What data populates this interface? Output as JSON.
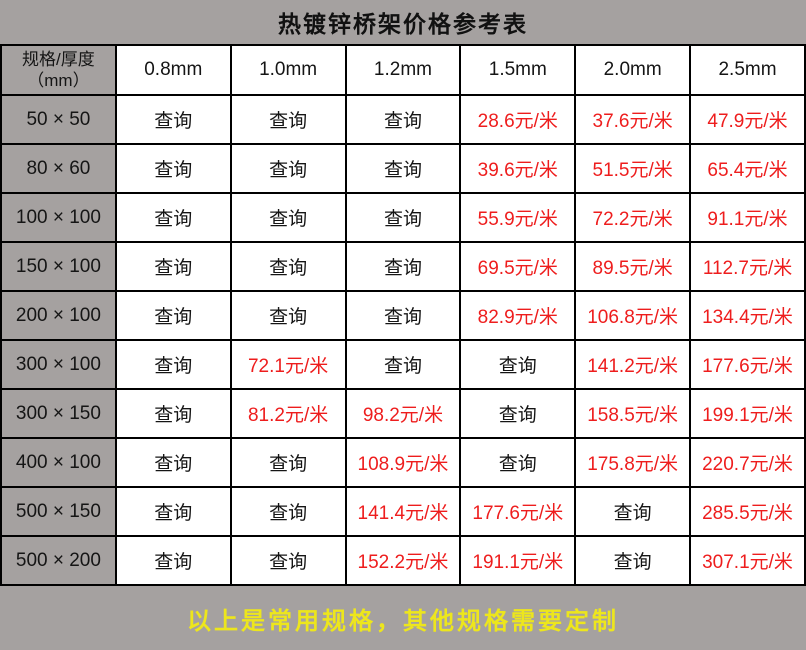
{
  "colors": {
    "background_gray": "#a5a1a0",
    "cell_white": "#ffffff",
    "grid_border_black": "#000000",
    "price_red": "#ee1d1d",
    "text_black": "#151515",
    "footer_yellow": "#ede61c"
  },
  "table": {
    "title": "热镀锌桥架价格参考表",
    "corner_line1": "规格/厚度",
    "corner_line2": "（mm）",
    "footer_note": "以上是常用规格，其他规格需要定制"
  },
  "chart_data": {
    "type": "table",
    "title": "热镀锌桥架价格参考表",
    "row_header_label": "规格/厚度（mm）",
    "columns": [
      "0.8mm",
      "1.0mm",
      "1.2mm",
      "1.5mm",
      "2.0mm",
      "2.5mm"
    ],
    "rows": [
      "50 × 50",
      "80 × 60",
      "100 × 100",
      "150 × 100",
      "200 × 100",
      "300 × 100",
      "300 × 150",
      "400 × 100",
      "500 × 150",
      "500 × 200"
    ],
    "values": [
      [
        "查询",
        "查询",
        "查询",
        "28.6元/米",
        "37.6元/米",
        "47.9元/米"
      ],
      [
        "查询",
        "查询",
        "查询",
        "39.6元/米",
        "51.5元/米",
        "65.4元/米"
      ],
      [
        "查询",
        "查询",
        "查询",
        "55.9元/米",
        "72.2元/米",
        "91.1元/米"
      ],
      [
        "查询",
        "查询",
        "查询",
        "69.5元/米",
        "89.5元/米",
        "112.7元/米"
      ],
      [
        "查询",
        "查询",
        "查询",
        "82.9元/米",
        "106.8元/米",
        "134.4元/米"
      ],
      [
        "查询",
        "72.1元/米",
        "查询",
        "查询",
        "141.2元/米",
        "177.6元/米"
      ],
      [
        "查询",
        "81.2元/米",
        "98.2元/米",
        "查询",
        "158.5元/米",
        "199.1元/米"
      ],
      [
        "查询",
        "查询",
        "108.9元/米",
        "查询",
        "175.8元/米",
        "220.7元/米"
      ],
      [
        "查询",
        "查询",
        "141.4元/米",
        "177.6元/米",
        "查询",
        "285.5元/米"
      ],
      [
        "查询",
        "查询",
        "152.2元/米",
        "191.1元/米",
        "查询",
        "307.1元/米"
      ]
    ],
    "price_unit_marker": "元",
    "footnote": "以上是常用规格，其他规格需要定制",
    "legend_position": "none",
    "grid": true
  }
}
